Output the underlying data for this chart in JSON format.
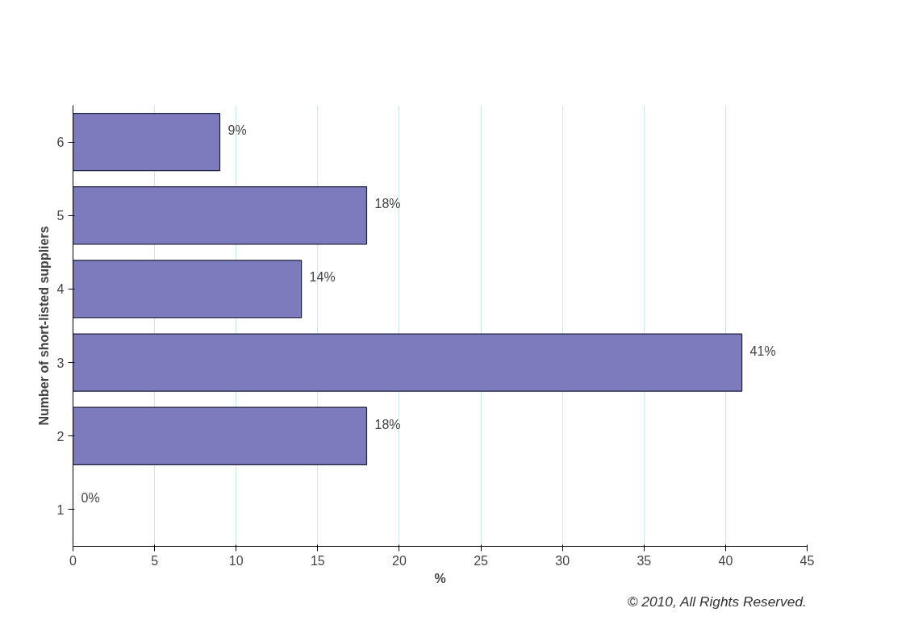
{
  "chart_data": {
    "type": "bar",
    "orientation": "horizontal",
    "ylabel": "Number of short-listed suppliers",
    "xlabel": "%",
    "categories": [
      "6",
      "5",
      "4",
      "3",
      "2",
      "1"
    ],
    "values": [
      9,
      18,
      14,
      41,
      18,
      0
    ],
    "value_labels": [
      "9%",
      "18%",
      "14%",
      "41%",
      "18%",
      "0%"
    ],
    "color": "#7b7bbd",
    "xlim": [
      0,
      45
    ],
    "xticks": [
      0,
      5,
      10,
      15,
      20,
      25,
      30,
      35,
      40,
      45
    ],
    "grid": "x",
    "annotations": [
      "© 2010, All Rights Reserved."
    ]
  }
}
